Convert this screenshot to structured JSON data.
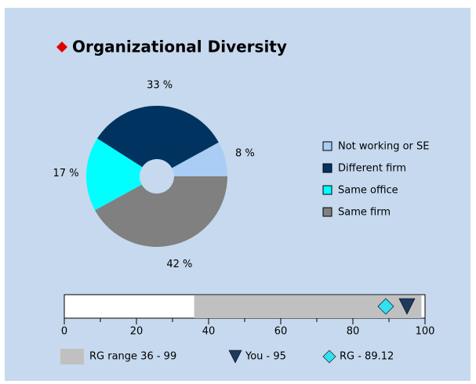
{
  "chart_data": [
    {
      "type": "pie",
      "title": "Organizational  Diversity",
      "categories": [
        "Not working or SE",
        "Different firm",
        "Same office",
        "Same firm"
      ],
      "values": [
        8,
        33,
        17,
        42
      ],
      "value_labels": [
        "8 %",
        "33 %",
        "17 %",
        "42 %"
      ],
      "colors": [
        "#a9cdf5",
        "#00335f",
        "#00ffff",
        "#808080"
      ],
      "donut": true
    },
    {
      "type": "range",
      "xlim": [
        0,
        100
      ],
      "xticks": [
        0,
        20,
        40,
        60,
        80,
        100
      ],
      "minor_xticks": [
        10,
        30,
        50,
        70,
        90
      ],
      "range": {
        "name": "RG range 36 - 99",
        "low": 36,
        "high": 99,
        "color": "#c0c0c0"
      },
      "markers": [
        {
          "name": "You - 95",
          "value": 95,
          "color": "#1f3a5f",
          "shape": "triangle"
        },
        {
          "name": "RG - 89.12",
          "value": 89.12,
          "color": "#33e0f0",
          "shape": "diamond"
        }
      ]
    }
  ]
}
